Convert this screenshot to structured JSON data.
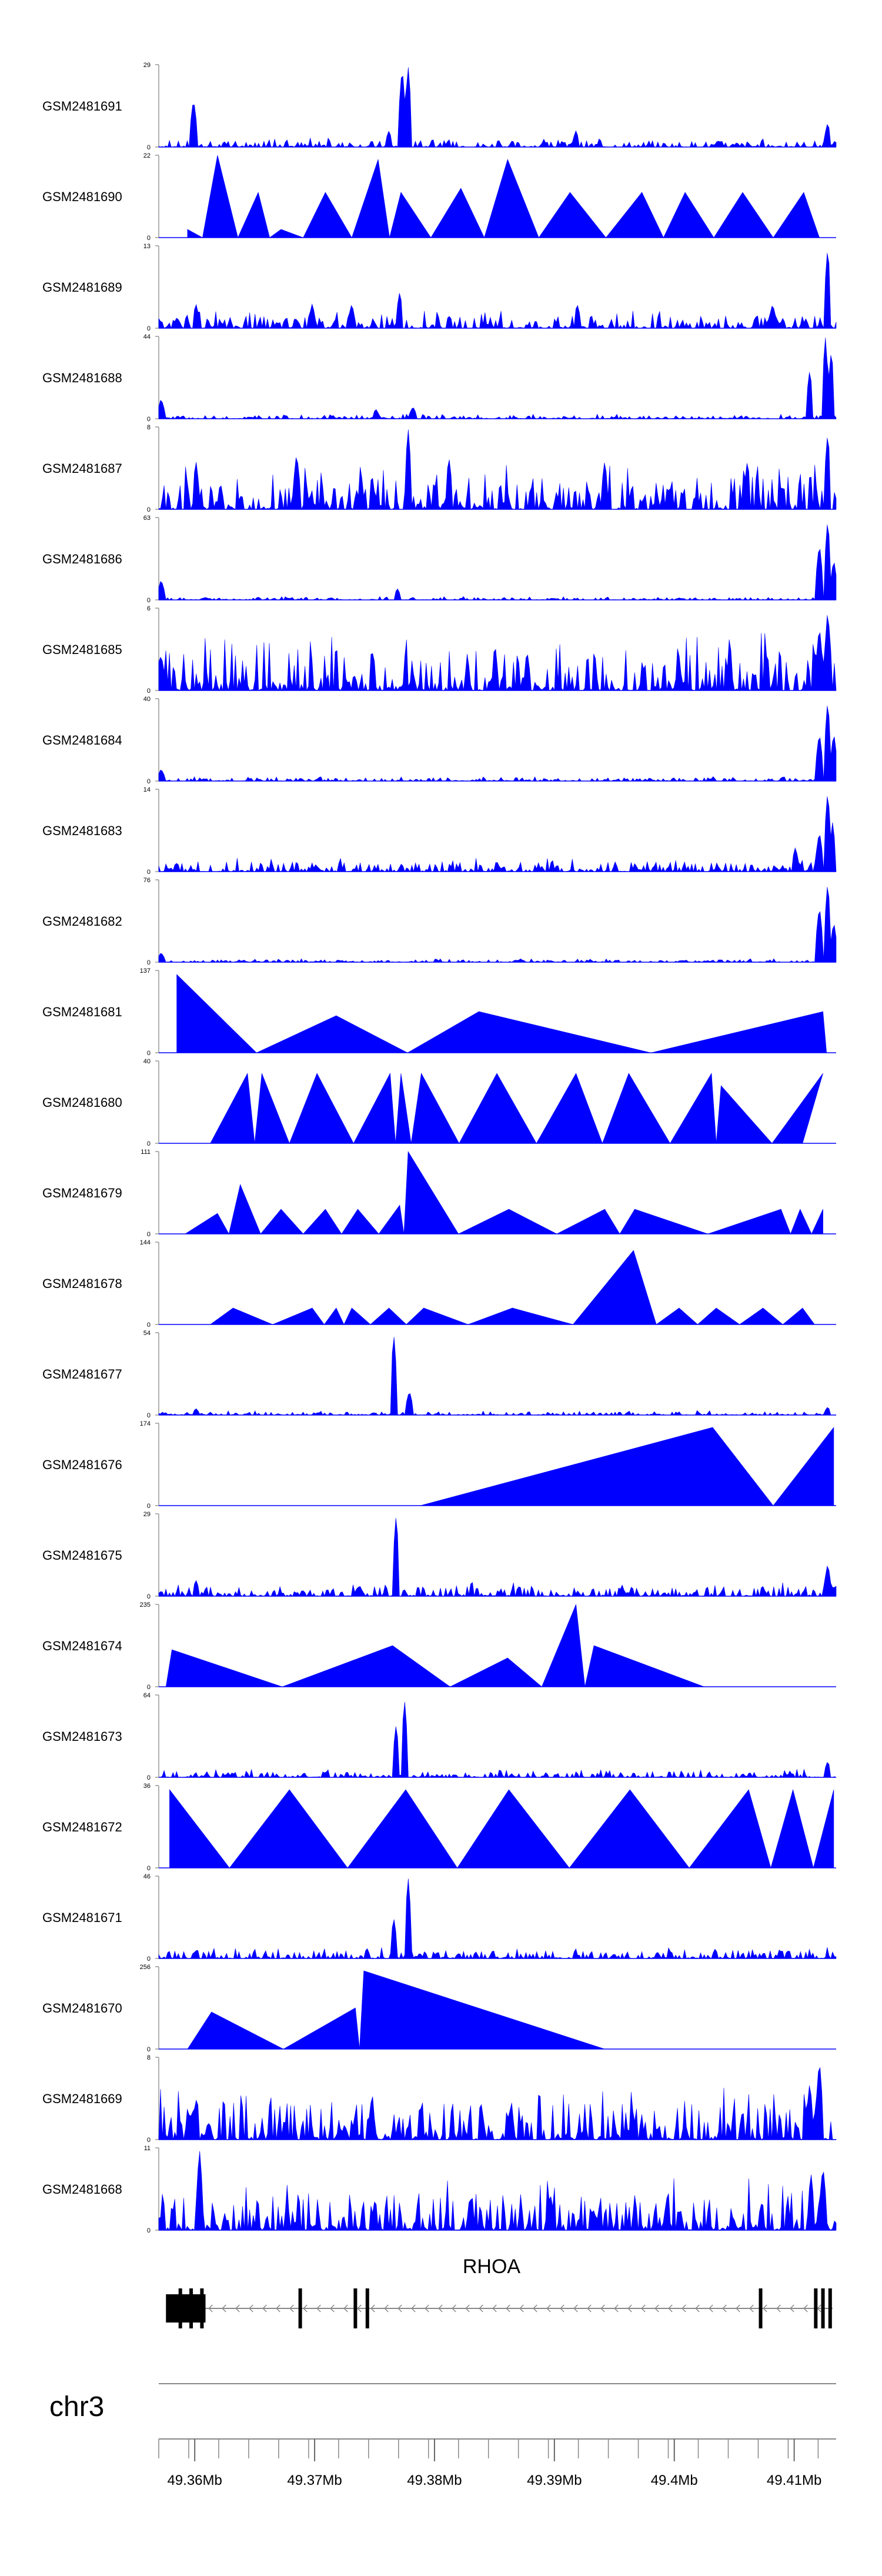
{
  "chart_data": {
    "type": "area",
    "title": "",
    "chromosome": "chr3",
    "gene": "RHOA",
    "xlim": [
      49.357,
      49.4135
    ],
    "x_ticks": [
      "49.36Mb",
      "49.37Mb",
      "49.38Mb",
      "49.39Mb",
      "49.4Mb",
      "49.41Mb"
    ],
    "x_tick_values": [
      49.36,
      49.37,
      49.38,
      49.39,
      49.4,
      49.41
    ],
    "color": "#0000ff",
    "tracks": [
      {
        "name": "GSM2481691",
        "ymax": "29",
        "peaks": [
          [
            49.3599,
            0.6
          ],
          [
            49.3773,
            1
          ],
          [
            49.3778,
            1
          ],
          [
            49.3762,
            0.2
          ],
          [
            49.3918,
            0.2
          ],
          [
            49.4128,
            0.3
          ]
        ],
        "spiky": true,
        "base": 0.08
      },
      {
        "name": "GSM2481690",
        "ymax": "22",
        "peaks": [
          [
            49.3594,
            0.1
          ],
          [
            49.3619,
            1
          ],
          [
            49.3653,
            0.55
          ],
          [
            49.3672,
            0.1
          ],
          [
            49.3709,
            0.55
          ],
          [
            49.3753,
            0.95
          ],
          [
            49.3772,
            0.55
          ],
          [
            49.3822,
            0.6
          ],
          [
            49.3861,
            0.95
          ],
          [
            49.3913,
            0.55
          ],
          [
            49.3973,
            0.55
          ],
          [
            49.4009,
            0.55
          ],
          [
            49.4057,
            0.55
          ],
          [
            49.4108,
            0.55
          ]
        ],
        "spiky": false,
        "x0": 49.3594,
        "x1": 49.4121
      },
      {
        "name": "GSM2481689",
        "ymax": "13",
        "peaks": [
          [
            49.3601,
            0.3
          ],
          [
            49.3698,
            0.3
          ],
          [
            49.3731,
            0.3
          ],
          [
            49.3771,
            0.45
          ],
          [
            49.3919,
            0.3
          ],
          [
            49.4082,
            0.3
          ],
          [
            49.4128,
            1
          ]
        ],
        "spiky": true,
        "base": 0.15
      },
      {
        "name": "GSM2481688",
        "ymax": "44",
        "peaks": [
          [
            49.3572,
            0.25
          ],
          [
            49.3751,
            0.12
          ],
          [
            49.3782,
            0.15
          ],
          [
            49.4113,
            0.6
          ],
          [
            49.4126,
            1
          ],
          [
            49.4131,
            0.85
          ]
        ],
        "spiky": true,
        "base": 0.04
      },
      {
        "name": "GSM2481687",
        "ymax": "8",
        "peaks": [
          [
            49.3778,
            1
          ],
          [
            49.3601,
            0.6
          ],
          [
            49.3685,
            0.7
          ],
          [
            49.3812,
            0.65
          ],
          [
            49.3942,
            0.6
          ],
          [
            49.4061,
            0.6
          ],
          [
            49.4128,
            0.95
          ]
        ],
        "spiky": true,
        "base": 0.4
      },
      {
        "name": "GSM2481686",
        "ymax": "63",
        "peaks": [
          [
            49.3572,
            0.25
          ],
          [
            49.3769,
            0.14
          ],
          [
            49.4121,
            0.7
          ],
          [
            49.4128,
            1
          ],
          [
            49.4133,
            0.5
          ]
        ],
        "spiky": true,
        "base": 0.03
      },
      {
        "name": "GSM2481685",
        "ymax": "6",
        "peaks": [
          [
            49.3572,
            0.45
          ],
          [
            49.4128,
            1
          ],
          [
            49.4121,
            0.8
          ]
        ],
        "spiky": true,
        "base": 0.5
      },
      {
        "name": "GSM2481684",
        "ymax": "40",
        "peaks": [
          [
            49.3572,
            0.15
          ],
          [
            49.4121,
            0.6
          ],
          [
            49.4128,
            1
          ],
          [
            49.4133,
            0.6
          ]
        ],
        "spiky": true,
        "base": 0.04
      },
      {
        "name": "GSM2481683",
        "ymax": "14",
        "peaks": [
          [
            49.4121,
            0.5
          ],
          [
            49.4128,
            1
          ],
          [
            49.4132,
            0.6
          ],
          [
            49.4101,
            0.3
          ]
        ],
        "spiky": true,
        "base": 0.12
      },
      {
        "name": "GSM2481682",
        "ymax": "76",
        "peaks": [
          [
            49.3572,
            0.12
          ],
          [
            49.4121,
            0.7
          ],
          [
            49.4128,
            1
          ],
          [
            49.4133,
            0.5
          ]
        ],
        "spiky": true,
        "base": 0.03
      },
      {
        "name": "GSM2481681",
        "ymax": "137",
        "peaks": [
          [
            49.3585,
            0.95
          ],
          [
            49.3718,
            0.45
          ],
          [
            49.3837,
            0.5
          ],
          [
            49.4124,
            0.5
          ]
        ],
        "spiky": false,
        "x0": 49.3585,
        "x1": 49.4127
      },
      {
        "name": "GSM2481680",
        "ymax": "40",
        "peaks": [
          [
            49.3644,
            0.85
          ],
          [
            49.3656,
            0.85
          ],
          [
            49.3702,
            0.85
          ],
          [
            49.3763,
            0.85
          ],
          [
            49.3772,
            0.85
          ],
          [
            49.3789,
            0.85
          ],
          [
            49.3852,
            0.85
          ],
          [
            49.3918,
            0.85
          ],
          [
            49.3962,
            0.85
          ],
          [
            49.4031,
            0.85
          ],
          [
            49.4039,
            0.7
          ],
          [
            49.4124,
            0.85
          ]
        ],
        "spiky": false,
        "x0": 49.3613,
        "x1": 49.4107
      },
      {
        "name": "GSM2481679",
        "ymax": "111",
        "peaks": [
          [
            49.3619,
            0.25
          ],
          [
            49.3638,
            0.6
          ],
          [
            49.3672,
            0.3
          ],
          [
            49.3709,
            0.3
          ],
          [
            49.3736,
            0.3
          ],
          [
            49.3778,
            1
          ],
          [
            49.3771,
            0.35
          ],
          [
            49.3862,
            0.3
          ],
          [
            49.3942,
            0.3
          ],
          [
            49.3967,
            0.3
          ],
          [
            49.4089,
            0.3
          ],
          [
            49.4105,
            0.3
          ],
          [
            49.4124,
            0.3
          ]
        ],
        "spiky": false,
        "x0": 49.3592,
        "x1": 49.4124
      },
      {
        "name": "GSM2481678",
        "ymax": "144",
        "peaks": [
          [
            49.3632,
            0.2
          ],
          [
            49.3698,
            0.2
          ],
          [
            49.3718,
            0.2
          ],
          [
            49.3731,
            0.2
          ],
          [
            49.3762,
            0.2
          ],
          [
            49.3791,
            0.2
          ],
          [
            49.3865,
            0.2
          ],
          [
            49.3966,
            0.9
          ],
          [
            49.4004,
            0.2
          ],
          [
            49.4035,
            0.2
          ],
          [
            49.4074,
            0.2
          ],
          [
            49.4107,
            0.2
          ]
        ],
        "spiky": false,
        "x0": 49.3613,
        "x1": 49.4117
      },
      {
        "name": "GSM2481677",
        "ymax": "54",
        "peaks": [
          [
            49.3766,
            1
          ],
          [
            49.3779,
            0.3
          ],
          [
            49.4128,
            0.1
          ],
          [
            49.3601,
            0.08
          ]
        ],
        "spiky": true,
        "base": 0.04
      },
      {
        "name": "GSM2481676",
        "ymax": "174",
        "peaks": [
          [
            49.4032,
            0.95
          ],
          [
            49.4133,
            0.95
          ]
        ],
        "spiky": false,
        "x0": 49.3788,
        "x1": 49.4133
      },
      {
        "name": "GSM2481675",
        "ymax": "29",
        "peaks": [
          [
            49.3768,
            1
          ],
          [
            49.3601,
            0.2
          ],
          [
            49.4128,
            0.4
          ]
        ],
        "spiky": true,
        "base": 0.12
      },
      {
        "name": "GSM2481674",
        "ymax": "235",
        "peaks": [
          [
            49.3581,
            0.45
          ],
          [
            49.3765,
            0.5
          ],
          [
            49.3861,
            0.35
          ],
          [
            49.3918,
            1
          ],
          [
            49.3933,
            0.5
          ]
        ],
        "spiky": false,
        "x0": 49.3576,
        "x1": 49.4025
      },
      {
        "name": "GSM2481673",
        "ymax": "64",
        "peaks": [
          [
            49.3768,
            0.65
          ],
          [
            49.3775,
            0.95
          ],
          [
            49.4128,
            0.2
          ]
        ],
        "spiky": true,
        "base": 0.07
      },
      {
        "name": "GSM2481672",
        "ymax": "36",
        "peaks": [
          [
            49.3579,
            0.95
          ],
          [
            49.3679,
            0.95
          ],
          [
            49.3776,
            0.95
          ],
          [
            49.3862,
            0.95
          ],
          [
            49.3963,
            0.95
          ],
          [
            49.4062,
            0.95
          ],
          [
            49.4099,
            0.95
          ],
          [
            49.4133,
            0.95
          ]
        ],
        "spiky": false,
        "x0": 49.3579,
        "x1": 49.4133
      },
      {
        "name": "GSM2481671",
        "ymax": "46",
        "peaks": [
          [
            49.3778,
            1
          ],
          [
            49.3766,
            0.5
          ],
          [
            49.3601,
            0.1
          ]
        ],
        "spiky": true,
        "base": 0.1
      },
      {
        "name": "GSM2481670",
        "ymax": "256",
        "peaks": [
          [
            49.3614,
            0.45
          ],
          [
            49.3734,
            0.5
          ],
          [
            49.3741,
            0.95
          ]
        ],
        "spiky": false,
        "x0": 49.3594,
        "x1": 49.3942
      },
      {
        "name": "GSM2481669",
        "ymax": "8",
        "peaks": [
          [
            49.4121,
            1
          ],
          [
            49.4113,
            0.7
          ],
          [
            49.3601,
            0.5
          ]
        ],
        "spiky": true,
        "base": 0.45
      },
      {
        "name": "GSM2481668",
        "ymax": "11",
        "peaks": [
          [
            49.3604,
            1
          ],
          [
            49.4114,
            0.7
          ],
          [
            49.4124,
            0.8
          ]
        ],
        "spiky": true,
        "base": 0.45
      }
    ]
  }
}
